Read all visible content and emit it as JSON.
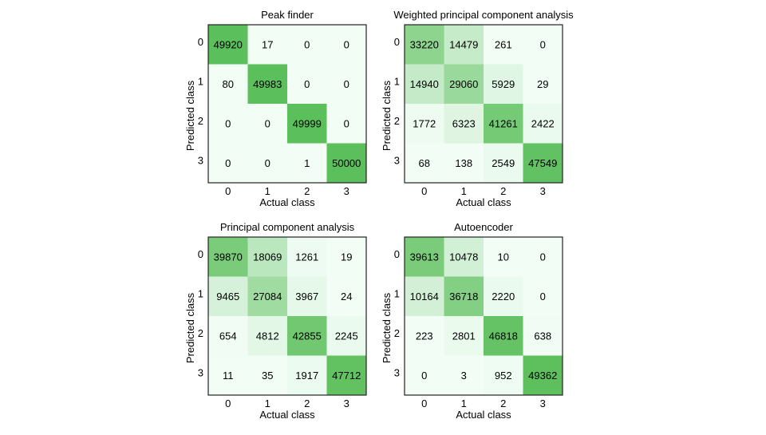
{
  "chart_data": [
    {
      "type": "heatmap",
      "title": "Peak finder",
      "xlabel": "Actual class",
      "ylabel": "Predicted class",
      "x_ticks": [
        "0",
        "1",
        "2",
        "3"
      ],
      "y_ticks": [
        "0",
        "1",
        "2",
        "3"
      ],
      "values": [
        [
          49920,
          17,
          0,
          0
        ],
        [
          80,
          49983,
          0,
          0
        ],
        [
          0,
          0,
          49999,
          0
        ],
        [
          0,
          0,
          1,
          50000
        ]
      ]
    },
    {
      "type": "heatmap",
      "title": "Weighted principal component analysis",
      "xlabel": "Actual class",
      "ylabel": "Predicted class",
      "x_ticks": [
        "0",
        "1",
        "2",
        "3"
      ],
      "y_ticks": [
        "0",
        "1",
        "2",
        "3"
      ],
      "values": [
        [
          33220,
          14479,
          261,
          0
        ],
        [
          14940,
          29060,
          5929,
          29
        ],
        [
          1772,
          6323,
          41261,
          2422
        ],
        [
          68,
          138,
          2549,
          47549
        ]
      ]
    },
    {
      "type": "heatmap",
      "title": "Principal component analysis",
      "xlabel": "Actual class",
      "ylabel": "Predicted class",
      "x_ticks": [
        "0",
        "1",
        "2",
        "3"
      ],
      "y_ticks": [
        "0",
        "1",
        "2",
        "3"
      ],
      "values": [
        [
          39870,
          18069,
          1261,
          19
        ],
        [
          9465,
          27084,
          3967,
          24
        ],
        [
          654,
          4812,
          42855,
          2245
        ],
        [
          11,
          35,
          1917,
          47712
        ]
      ]
    },
    {
      "type": "heatmap",
      "title": "Autoencoder",
      "xlabel": "Actual class",
      "ylabel": "Predicted class",
      "x_ticks": [
        "0",
        "1",
        "2",
        "3"
      ],
      "y_ticks": [
        "0",
        "1",
        "2",
        "3"
      ],
      "values": [
        [
          39613,
          10478,
          10,
          0
        ],
        [
          10164,
          36718,
          2220,
          0
        ],
        [
          223,
          2801,
          46818,
          638
        ],
        [
          0,
          3,
          952,
          49362
        ]
      ]
    }
  ],
  "colors": {
    "low": "#f2fdf6",
    "high": "#5bbf5b"
  }
}
